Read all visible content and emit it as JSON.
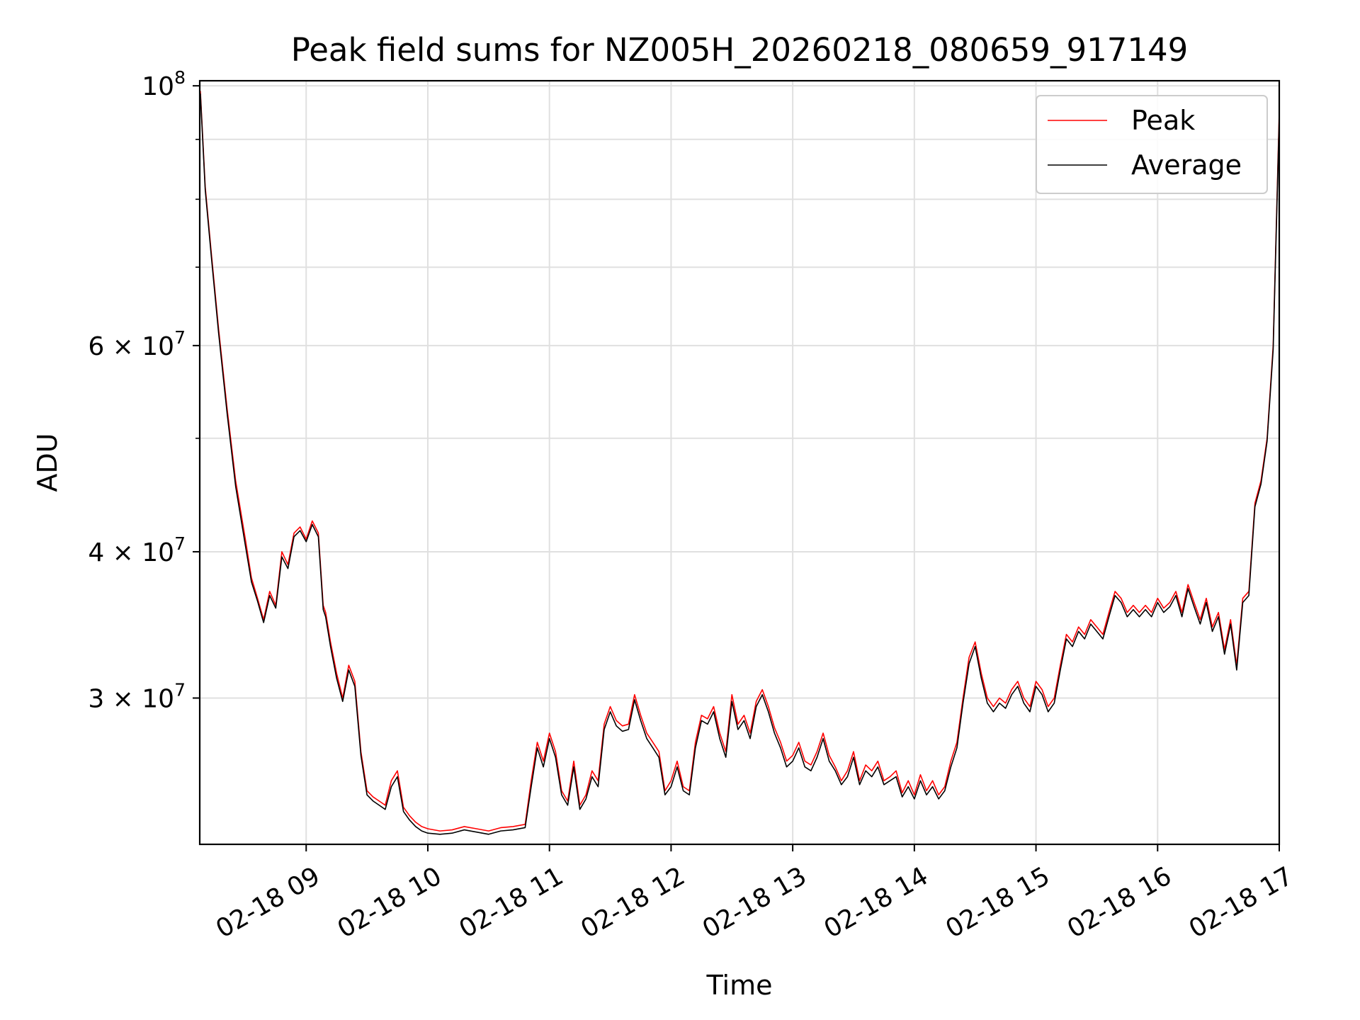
{
  "chart_data": {
    "type": "line",
    "title": "Peak field sums for NZ005H_20260218_080659_917149",
    "xlabel": "Time",
    "ylabel": "ADU",
    "yscale": "log",
    "ylim": [
      22500000,
      101000000
    ],
    "xlim": [
      8.125,
      17.0
    ],
    "grid": true,
    "legend_position": "top-right",
    "x_ticks": [
      {
        "value": 9,
        "label": "02-18 09"
      },
      {
        "value": 10,
        "label": "02-18 10"
      },
      {
        "value": 11,
        "label": "02-18 11"
      },
      {
        "value": 12,
        "label": "02-18 12"
      },
      {
        "value": 13,
        "label": "02-18 13"
      },
      {
        "value": 14,
        "label": "02-18 14"
      },
      {
        "value": 15,
        "label": "02-18 15"
      },
      {
        "value": 16,
        "label": "02-18 16"
      },
      {
        "value": 17,
        "label": "02-18 17"
      }
    ],
    "y_ticks": [
      {
        "value": 100000000,
        "mant": "",
        "base": "10",
        "exp": "8"
      },
      {
        "value": 60000000,
        "mant": "6 × ",
        "base": "10",
        "exp": "7"
      },
      {
        "value": 40000000,
        "mant": "4 × ",
        "base": "10",
        "exp": "7"
      },
      {
        "value": 30000000,
        "mant": "3 × ",
        "base": "10",
        "exp": "7"
      }
    ],
    "y_minor_ticks": [
      50000000,
      70000000,
      80000000,
      90000000
    ],
    "x_unit": "hour of 2026-02-18",
    "series": [
      {
        "name": "Peak",
        "color": "#ff0000",
        "x": [
          8.13,
          8.17,
          8.22,
          8.28,
          8.35,
          8.42,
          8.5,
          8.55,
          8.6,
          8.65,
          8.7,
          8.75,
          8.8,
          8.85,
          8.9,
          8.95,
          9.0,
          9.05,
          9.1,
          9.14,
          9.16,
          9.2,
          9.25,
          9.3,
          9.35,
          9.4,
          9.45,
          9.5,
          9.55,
          9.6,
          9.65,
          9.7,
          9.75,
          9.8,
          9.85,
          9.9,
          9.95,
          10.0,
          10.1,
          10.2,
          10.3,
          10.4,
          10.5,
          10.6,
          10.7,
          10.8,
          10.85,
          10.9,
          10.95,
          11.0,
          11.05,
          11.1,
          11.15,
          11.2,
          11.25,
          11.3,
          11.35,
          11.4,
          11.45,
          11.5,
          11.55,
          11.6,
          11.65,
          11.7,
          11.75,
          11.8,
          11.85,
          11.9,
          11.95,
          12.0,
          12.05,
          12.1,
          12.15,
          12.2,
          12.25,
          12.3,
          12.35,
          12.4,
          12.45,
          12.5,
          12.55,
          12.6,
          12.65,
          12.7,
          12.75,
          12.8,
          12.85,
          12.9,
          12.95,
          13.0,
          13.05,
          13.1,
          13.15,
          13.2,
          13.25,
          13.3,
          13.35,
          13.4,
          13.45,
          13.5,
          13.55,
          13.6,
          13.65,
          13.7,
          13.75,
          13.8,
          13.85,
          13.9,
          13.95,
          14.0,
          14.05,
          14.1,
          14.15,
          14.2,
          14.25,
          14.3,
          14.35,
          14.4,
          14.45,
          14.5,
          14.55,
          14.6,
          14.65,
          14.7,
          14.75,
          14.8,
          14.85,
          14.9,
          14.95,
          15.0,
          15.05,
          15.1,
          15.15,
          15.2,
          15.25,
          15.3,
          15.35,
          15.4,
          15.45,
          15.5,
          15.55,
          15.6,
          15.65,
          15.7,
          15.75,
          15.8,
          15.85,
          15.9,
          15.95,
          16.0,
          16.05,
          16.1,
          16.15,
          16.2,
          16.25,
          16.3,
          16.35,
          16.4,
          16.45,
          16.5,
          16.55,
          16.6,
          16.65,
          16.7,
          16.75,
          16.8,
          16.85,
          16.9,
          16.95,
          17.0
        ],
        "values": [
          99000000,
          82000000,
          72000000,
          62000000,
          53000000,
          46000000,
          41000000,
          38000000,
          36500000,
          35000000,
          37000000,
          36000000,
          40000000,
          39000000,
          41500000,
          42000000,
          41000000,
          42500000,
          41500000,
          36000000,
          35500000,
          33500000,
          31500000,
          30000000,
          32000000,
          31000000,
          27000000,
          25000000,
          24700000,
          24500000,
          24300000,
          25500000,
          26000000,
          24200000,
          23800000,
          23500000,
          23300000,
          23200000,
          23100000,
          23150000,
          23300000,
          23200000,
          23100000,
          23250000,
          23300000,
          23400000,
          25500000,
          27500000,
          26500000,
          28000000,
          27000000,
          25000000,
          24500000,
          26500000,
          24300000,
          24800000,
          26000000,
          25500000,
          28500000,
          29500000,
          28700000,
          28400000,
          28500000,
          30200000,
          29000000,
          28000000,
          27500000,
          27000000,
          25000000,
          25500000,
          26500000,
          25200000,
          25000000,
          27500000,
          29000000,
          28800000,
          29500000,
          28000000,
          27000000,
          30200000,
          28500000,
          29000000,
          28000000,
          29800000,
          30500000,
          29500000,
          28300000,
          27500000,
          26500000,
          26800000,
          27500000,
          26500000,
          26300000,
          27000000,
          28000000,
          26800000,
          26200000,
          25500000,
          26000000,
          27000000,
          25500000,
          26300000,
          26000000,
          26500000,
          25500000,
          25700000,
          26000000,
          24900000,
          25500000,
          24800000,
          25800000,
          25000000,
          25500000,
          24800000,
          25200000,
          26500000,
          27500000,
          30000000,
          32500000,
          33500000,
          31500000,
          30000000,
          29500000,
          30000000,
          29700000,
          30500000,
          31000000,
          30000000,
          29500000,
          31000000,
          30500000,
          29500000,
          30000000,
          32000000,
          34000000,
          33500000,
          34500000,
          34000000,
          35000000,
          34500000,
          34000000,
          35500000,
          37000000,
          36500000,
          35500000,
          36000000,
          35500000,
          36000000,
          35500000,
          36500000,
          35800000,
          36200000,
          37000000,
          35500000,
          37500000,
          36200000,
          35000000,
          36500000,
          34500000,
          35500000,
          33000000,
          35000000,
          32000000,
          36500000,
          37000000,
          44000000,
          46000000,
          50000000,
          60000000,
          95000000
        ]
      },
      {
        "name": "Average",
        "color": "#000000",
        "x": [
          8.13,
          8.17,
          8.22,
          8.28,
          8.35,
          8.42,
          8.5,
          8.55,
          8.6,
          8.65,
          8.7,
          8.75,
          8.8,
          8.85,
          8.9,
          8.95,
          9.0,
          9.05,
          9.1,
          9.14,
          9.16,
          9.2,
          9.25,
          9.3,
          9.35,
          9.4,
          9.45,
          9.5,
          9.55,
          9.6,
          9.65,
          9.7,
          9.75,
          9.8,
          9.85,
          9.9,
          9.95,
          10.0,
          10.1,
          10.2,
          10.3,
          10.4,
          10.5,
          10.6,
          10.7,
          10.8,
          10.85,
          10.9,
          10.95,
          11.0,
          11.05,
          11.1,
          11.15,
          11.2,
          11.25,
          11.3,
          11.35,
          11.4,
          11.45,
          11.5,
          11.55,
          11.6,
          11.65,
          11.7,
          11.75,
          11.8,
          11.85,
          11.9,
          11.95,
          12.0,
          12.05,
          12.1,
          12.15,
          12.2,
          12.25,
          12.3,
          12.35,
          12.4,
          12.45,
          12.5,
          12.55,
          12.6,
          12.65,
          12.7,
          12.75,
          12.8,
          12.85,
          12.9,
          12.95,
          13.0,
          13.05,
          13.1,
          13.15,
          13.2,
          13.25,
          13.3,
          13.35,
          13.4,
          13.45,
          13.5,
          13.55,
          13.6,
          13.65,
          13.7,
          13.75,
          13.8,
          13.85,
          13.9,
          13.95,
          14.0,
          14.05,
          14.1,
          14.15,
          14.2,
          14.25,
          14.3,
          14.35,
          14.4,
          14.45,
          14.5,
          14.55,
          14.6,
          14.65,
          14.7,
          14.75,
          14.8,
          14.85,
          14.9,
          14.95,
          15.0,
          15.05,
          15.1,
          15.15,
          15.2,
          15.25,
          15.3,
          15.35,
          15.4,
          15.45,
          15.5,
          15.55,
          15.6,
          15.65,
          15.7,
          15.75,
          15.8,
          15.85,
          15.9,
          15.95,
          16.0,
          16.05,
          16.1,
          16.15,
          16.2,
          16.25,
          16.3,
          16.35,
          16.4,
          16.45,
          16.5,
          16.55,
          16.6,
          16.65,
          16.7,
          16.75,
          16.8,
          16.85,
          16.9,
          16.95,
          17.0
        ],
        "values": [
          98500000,
          81500000,
          71500000,
          61500000,
          52500000,
          45500000,
          40500000,
          37700000,
          36300000,
          34800000,
          36700000,
          35800000,
          39600000,
          38700000,
          41200000,
          41700000,
          40800000,
          42200000,
          41200000,
          35700000,
          35200000,
          33200000,
          31200000,
          29800000,
          31700000,
          30700000,
          26800000,
          24800000,
          24500000,
          24300000,
          24100000,
          25200000,
          25700000,
          24000000,
          23600000,
          23300000,
          23100000,
          23000000,
          22950000,
          23000000,
          23150000,
          23050000,
          22950000,
          23100000,
          23150000,
          23250000,
          25200000,
          27200000,
          26200000,
          27700000,
          26700000,
          24800000,
          24300000,
          26200000,
          24100000,
          24600000,
          25700000,
          25200000,
          28200000,
          29200000,
          28400000,
          28100000,
          28200000,
          29900000,
          28700000,
          27700000,
          27200000,
          26700000,
          24800000,
          25200000,
          26200000,
          25000000,
          24800000,
          27200000,
          28700000,
          28500000,
          29200000,
          27700000,
          26700000,
          29800000,
          28200000,
          28700000,
          27700000,
          29500000,
          30200000,
          29200000,
          28000000,
          27200000,
          26200000,
          26500000,
          27200000,
          26200000,
          26000000,
          26700000,
          27700000,
          26500000,
          26000000,
          25300000,
          25700000,
          26700000,
          25300000,
          26000000,
          25700000,
          26200000,
          25300000,
          25500000,
          25700000,
          24700000,
          25200000,
          24600000,
          25500000,
          24800000,
          25200000,
          24600000,
          25000000,
          26200000,
          27200000,
          29700000,
          32100000,
          33200000,
          31200000,
          29700000,
          29200000,
          29700000,
          29400000,
          30200000,
          30700000,
          29700000,
          29200000,
          30700000,
          30200000,
          29200000,
          29700000,
          31700000,
          33700000,
          33200000,
          34200000,
          33700000,
          34700000,
          34200000,
          33700000,
          35200000,
          36700000,
          36200000,
          35200000,
          35700000,
          35200000,
          35700000,
          35200000,
          36200000,
          35500000,
          35900000,
          36700000,
          35200000,
          37200000,
          35900000,
          34700000,
          36200000,
          34200000,
          35200000,
          32700000,
          34700000,
          31700000,
          36200000,
          36700000,
          43700000,
          45700000,
          49700000,
          59500000,
          94000000
        ]
      }
    ]
  }
}
